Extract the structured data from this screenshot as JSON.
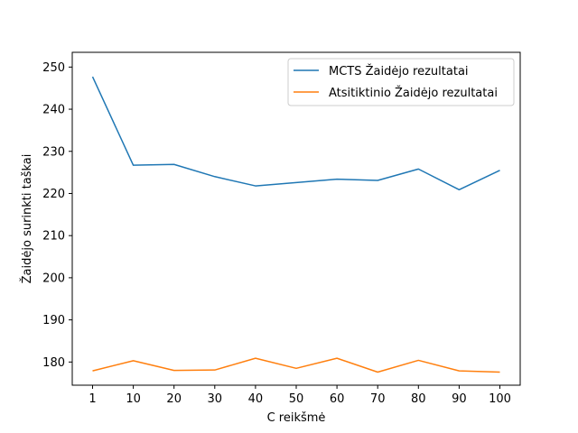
{
  "chart_data": {
    "type": "line",
    "title": "",
    "xlabel": "C reikšmė",
    "ylabel": "Žaidėjo surinkti taškai",
    "categories": [
      "1",
      "10",
      "20",
      "30",
      "40",
      "50",
      "60",
      "70",
      "80",
      "90",
      "100"
    ],
    "ylim": [
      174.5,
      253.5
    ],
    "yticks": [
      180,
      190,
      200,
      210,
      220,
      230,
      240,
      250
    ],
    "grid": false,
    "legend_position": "top-right",
    "series": [
      {
        "name": "MCTS Žaidėjo rezultatai",
        "color": "#1f77b4",
        "values": [
          247.7,
          226.7,
          226.9,
          224.0,
          221.8,
          222.6,
          223.4,
          223.1,
          225.8,
          220.9,
          225.5
        ]
      },
      {
        "name": "Atsitiktinio Žaidėjo rezultatai",
        "color": "#ff7f0e",
        "values": [
          177.9,
          180.3,
          178.0,
          178.1,
          180.9,
          178.5,
          180.9,
          177.6,
          180.4,
          177.9,
          177.6
        ]
      }
    ]
  }
}
